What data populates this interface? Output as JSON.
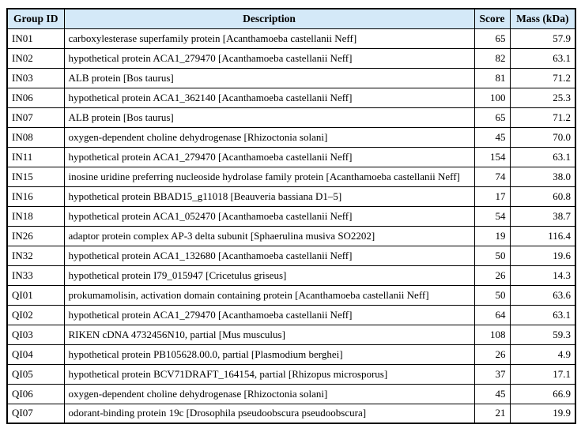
{
  "colors": {
    "header_background": "#d4e9f8",
    "border": "#000000",
    "text": "#000000",
    "page_background": "#ffffff"
  },
  "table": {
    "columns": {
      "group_id": "Group ID",
      "description": "Description",
      "score": "Score",
      "mass": "Mass (kDa)"
    },
    "rows": [
      {
        "group_id": "IN01",
        "description": "carboxylesterase superfamily protein [Acanthamoeba castellanii Neff]",
        "score": "65",
        "mass": "57.9"
      },
      {
        "group_id": "IN02",
        "description": "hypothetical protein ACA1_279470 [Acanthamoeba castellanii Neff]",
        "score": "82",
        "mass": "63.1"
      },
      {
        "group_id": "IN03",
        "description": "ALB protein [Bos taurus]",
        "score": "81",
        "mass": "71.2"
      },
      {
        "group_id": "IN06",
        "description": "hypothetical protein ACA1_362140 [Acanthamoeba castellanii Neff]",
        "score": "100",
        "mass": "25.3"
      },
      {
        "group_id": "IN07",
        "description": "ALB protein [Bos taurus]",
        "score": "65",
        "mass": "71.2"
      },
      {
        "group_id": "IN08",
        "description": "oxygen-dependent choline dehydrogenase [Rhizoctonia solani]",
        "score": "45",
        "mass": "70.0"
      },
      {
        "group_id": "IN11",
        "description": "hypothetical protein ACA1_279470 [Acanthamoeba castellanii Neff]",
        "score": "154",
        "mass": "63.1"
      },
      {
        "group_id": "IN15",
        "description": "inosine uridine preferring nucleoside hydrolase family protein [Acanthamoeba castellanii Neff]",
        "score": "74",
        "mass": "38.0"
      },
      {
        "group_id": "IN16",
        "description": "hypothetical protein BBAD15_g11018 [Beauveria bassiana D1–5]",
        "score": "17",
        "mass": "60.8"
      },
      {
        "group_id": "IN18",
        "description": "hypothetical protein ACA1_052470 [Acanthamoeba castellanii Neff]",
        "score": "54",
        "mass": "38.7"
      },
      {
        "group_id": "IN26",
        "description": "adaptor protein complex AP-3 delta subunit [Sphaerulina musiva SO2202]",
        "score": "19",
        "mass": "116.4"
      },
      {
        "group_id": "IN32",
        "description": "hypothetical protein ACA1_132680 [Acanthamoeba castellanii Neff]",
        "score": "50",
        "mass": "19.6"
      },
      {
        "group_id": "IN33",
        "description": "hypothetical protein I79_015947 [Cricetulus griseus]",
        "score": "26",
        "mass": "14.3"
      },
      {
        "group_id": "QI01",
        "description": "prokumamolisin, activation domain containing protein [Acanthamoeba castellanii Neff]",
        "score": "50",
        "mass": "63.6"
      },
      {
        "group_id": "QI02",
        "description": "hypothetical protein ACA1_279470 [Acanthamoeba castellanii Neff]",
        "score": "64",
        "mass": "63.1"
      },
      {
        "group_id": "QI03",
        "description": "RIKEN cDNA 4732456N10, partial [Mus musculus]",
        "score": "108",
        "mass": "59.3"
      },
      {
        "group_id": "QI04",
        "description": "hypothetical protein PB105628.00.0, partial [Plasmodium berghei]",
        "score": "26",
        "mass": "4.9"
      },
      {
        "group_id": "QI05",
        "description": "hypothetical protein BCV71DRAFT_164154, partial [Rhizopus microsporus]",
        "score": "37",
        "mass": "17.1"
      },
      {
        "group_id": "QI06",
        "description": "oxygen-dependent choline dehydrogenase [Rhizoctonia solani]",
        "score": "45",
        "mass": "66.9"
      },
      {
        "group_id": "QI07",
        "description": "odorant-binding protein 19c [Drosophila pseudoobscura pseudoobscura]",
        "score": "21",
        "mass": "19.9"
      }
    ]
  }
}
